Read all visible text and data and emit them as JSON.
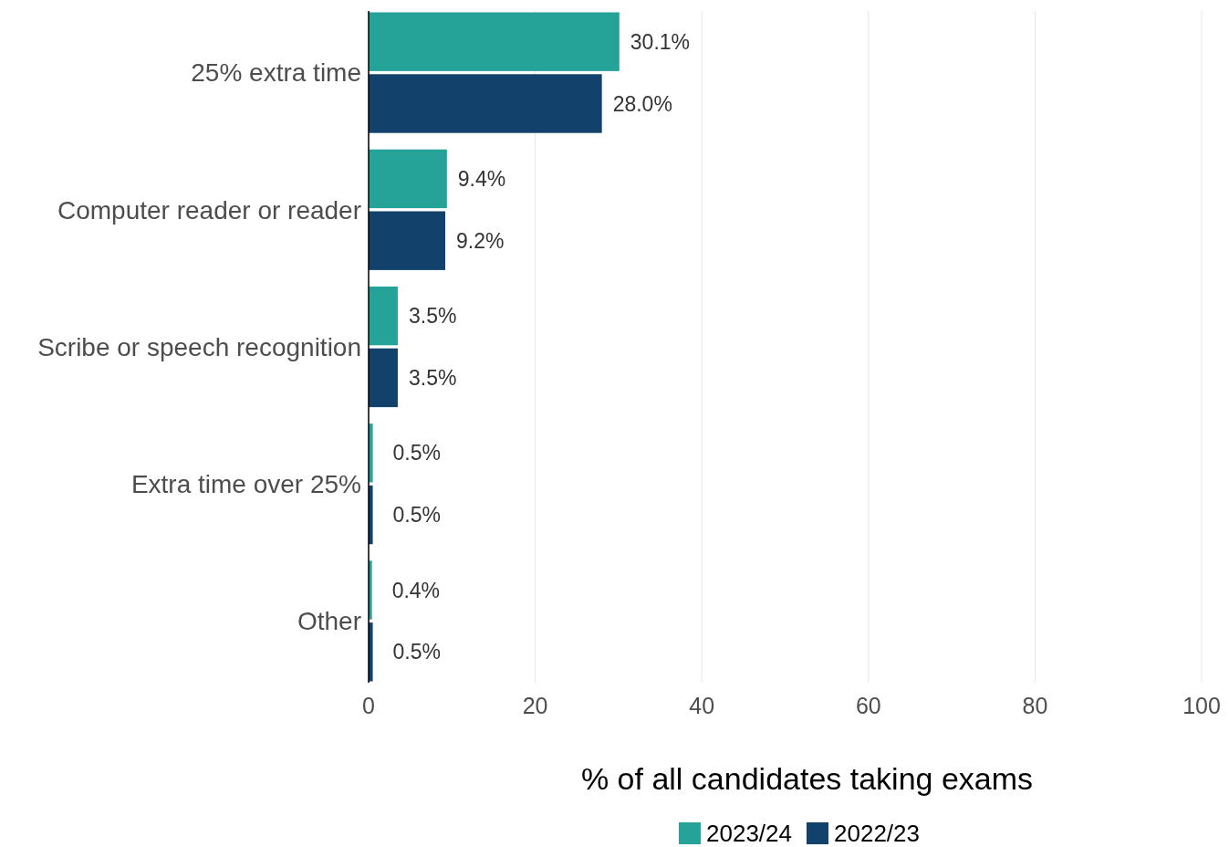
{
  "chart_data": {
    "type": "bar",
    "orientation": "horizontal",
    "xlabel": "% of all candidates taking exams",
    "categories": [
      "25% extra time",
      "Computer reader or reader",
      "Scribe or speech recognition",
      "Extra time over 25%",
      "Other"
    ],
    "series": [
      {
        "name": "2023/24",
        "color": "#26a398",
        "values": [
          30.1,
          9.4,
          3.5,
          0.5,
          0.4
        ],
        "value_labels": [
          "30.1%",
          "9.4%",
          "3.5%",
          "0.5%",
          "0.4%"
        ]
      },
      {
        "name": "2022/23",
        "color": "#12416b",
        "values": [
          28.0,
          9.2,
          3.5,
          0.5,
          0.5
        ],
        "value_labels": [
          "28.0%",
          "9.2%",
          "3.5%",
          "0.5%",
          "0.5%"
        ]
      }
    ],
    "xlim": [
      0,
      100
    ],
    "xticks": [
      0,
      20,
      40,
      60,
      80,
      100
    ],
    "grid": "x",
    "legend": "bottom"
  }
}
